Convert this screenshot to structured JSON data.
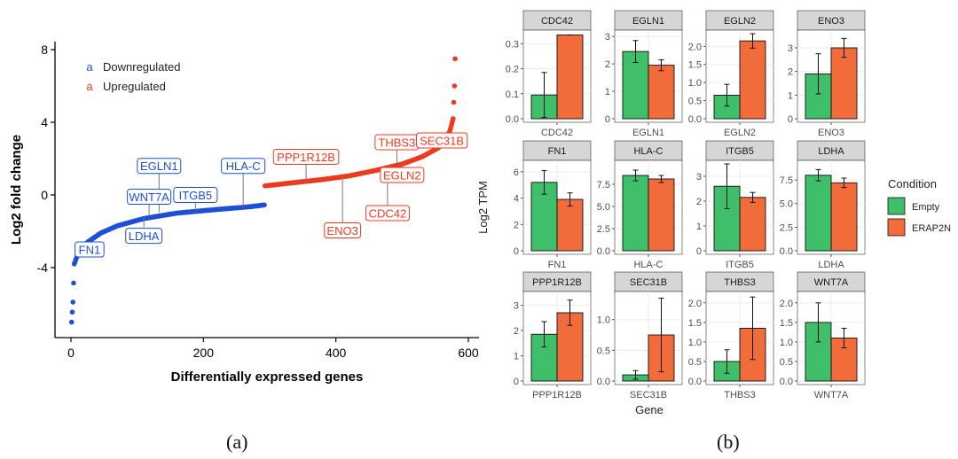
{
  "panel_labels": {
    "a": "(a)",
    "b": "(b)"
  },
  "colors": {
    "down": "#1f4fd6",
    "up": "#ec3b20",
    "empty": "#3fbf6a",
    "erap2n": "#f26b3a",
    "strip": "#d6d6d6",
    "grid": "#ebebeb"
  },
  "chart_data": [
    {
      "type": "scatter",
      "title": "",
      "xlabel": "Differentially expressed genes",
      "ylabel": "Log2 fold change",
      "xlim": [
        0,
        600
      ],
      "ylim": [
        -8,
        8
      ],
      "xticks": [
        "0",
        "200",
        "400",
        "600"
      ],
      "yticks": [
        "-4",
        "0",
        "4",
        "8"
      ],
      "legend": {
        "placement": "top-left",
        "symbol": "a",
        "entries": [
          {
            "label": "Downregulated",
            "color": "#1f4fd6"
          },
          {
            "label": "Upregulated",
            "color": "#ec3b20"
          }
        ]
      },
      "series": [
        {
          "name": "Downregulated",
          "range": [
            1,
            292
          ],
          "curve": [
            [
              1,
              -7.0
            ],
            [
              3,
              -5.9
            ],
            [
              5,
              -3.8
            ],
            [
              9,
              -3.4
            ],
            [
              15,
              -3.0
            ],
            [
              25,
              -2.6
            ],
            [
              45,
              -2.1
            ],
            [
              70,
              -1.7
            ],
            [
              110,
              -1.3
            ],
            [
              160,
              -1.0
            ],
            [
              220,
              -0.8
            ],
            [
              270,
              -0.65
            ],
            [
              292,
              -0.55
            ]
          ]
        },
        {
          "name": "Upregulated",
          "range": [
            293,
            580
          ],
          "curve": [
            [
              293,
              0.5
            ],
            [
              330,
              0.65
            ],
            [
              380,
              0.85
            ],
            [
              420,
              1.05
            ],
            [
              460,
              1.35
            ],
            [
              500,
              1.7
            ],
            [
              530,
              2.1
            ],
            [
              555,
              2.6
            ],
            [
              565,
              3.0
            ],
            [
              572,
              3.5
            ],
            [
              577,
              4.2
            ],
            [
              579,
              6.0
            ],
            [
              580,
              7.5
            ]
          ]
        }
      ],
      "annotations": [
        {
          "label": "EGLN1",
          "group": "down",
          "x": 133,
          "y": -0.95,
          "ly": 1.6
        },
        {
          "label": "WNT7A",
          "group": "down",
          "x": 118,
          "y": -1.1,
          "ly": -0.1
        },
        {
          "label": "ITGB5",
          "group": "down",
          "x": 188,
          "y": -0.85,
          "ly": 0.0
        },
        {
          "label": "HLA-C",
          "group": "down",
          "x": 260,
          "y": -0.7,
          "ly": 1.6
        },
        {
          "label": "LDHA",
          "group": "down",
          "x": 110,
          "y": -1.25,
          "ly": -2.25
        },
        {
          "label": "FN1",
          "group": "down",
          "x": 28,
          "y": -2.6,
          "ly": -3.0
        },
        {
          "label": "PPP1R12B",
          "group": "up",
          "x": 355,
          "y": 0.75,
          "ly": 2.1
        },
        {
          "label": "ENO3",
          "group": "up",
          "x": 410,
          "y": 1.0,
          "ly": -1.95
        },
        {
          "label": "CDC42",
          "group": "up",
          "x": 478,
          "y": 1.55,
          "ly": -1.0
        },
        {
          "label": "THBS3",
          "group": "up",
          "x": 492,
          "y": 1.7,
          "ly": 2.9
        },
        {
          "label": "EGLN2",
          "group": "up",
          "x": 500,
          "y": 1.75,
          "ly": 1.1
        },
        {
          "label": "SEC31B",
          "group": "up",
          "x": 560,
          "y": 2.8,
          "ly": 3.0
        }
      ]
    },
    {
      "type": "bar",
      "layout": "facet-grid",
      "xlabel": "Gene",
      "ylabel": "Log2 TPM",
      "legend": {
        "title": "Condition",
        "placement": "right",
        "entries": [
          "Empty",
          "ERAP2N"
        ]
      },
      "series_names": [
        "Empty",
        "ERAP2N"
      ],
      "facets": [
        {
          "gene": "CDC42",
          "yticks": [
            "0.0",
            "0.1",
            "0.2",
            "0.3"
          ],
          "ymax": 0.34,
          "values": [
            0.095,
            0.335
          ],
          "err": [
            0.09,
            0.0
          ]
        },
        {
          "gene": "EGLN1",
          "yticks": [
            "0",
            "1",
            "2",
            "3"
          ],
          "ymax": 3.1,
          "values": [
            2.45,
            1.95
          ],
          "err": [
            0.4,
            0.2
          ]
        },
        {
          "gene": "EGLN2",
          "yticks": [
            "0.0",
            "0.5",
            "1.0",
            "1.5",
            "2.0"
          ],
          "ymax": 2.35,
          "values": [
            0.65,
            2.15
          ],
          "err": [
            0.3,
            0.2
          ]
        },
        {
          "gene": "ENO3",
          "yticks": [
            "0",
            "1",
            "2",
            "3"
          ],
          "ymax": 3.6,
          "values": [
            1.9,
            3.0
          ],
          "err": [
            0.85,
            0.4
          ]
        },
        {
          "gene": "FN1",
          "yticks": [
            "0",
            "2",
            "4",
            "6"
          ],
          "ymax": 6.6,
          "values": [
            5.2,
            3.9
          ],
          "err": [
            0.9,
            0.5
          ]
        },
        {
          "gene": "HLA-C",
          "yticks": [
            "0.0",
            "2.5",
            "5.0",
            "7.5"
          ],
          "ymax": 9.8,
          "values": [
            8.5,
            8.1
          ],
          "err": [
            0.6,
            0.4
          ]
        },
        {
          "gene": "ITGB5",
          "yticks": [
            "0",
            "1",
            "2",
            "3"
          ],
          "ymax": 3.5,
          "values": [
            2.6,
            2.15
          ],
          "err": [
            0.9,
            0.2
          ]
        },
        {
          "gene": "LDHA",
          "yticks": [
            "0.0",
            "2.5",
            "5.0",
            "7.5"
          ],
          "ymax": 9.2,
          "values": [
            8.0,
            7.2
          ],
          "err": [
            0.6,
            0.5
          ]
        },
        {
          "gene": "PPP1R12B",
          "yticks": [
            "0",
            "1",
            "2",
            "3"
          ],
          "ymax": 3.4,
          "values": [
            1.85,
            2.7
          ],
          "err": [
            0.5,
            0.5
          ]
        },
        {
          "gene": "SEC31B",
          "yticks": [
            "0.0",
            "0.5",
            "1.0"
          ],
          "ymax": 1.4,
          "values": [
            0.1,
            0.75
          ],
          "err": [
            0.07,
            0.6
          ]
        },
        {
          "gene": "THBS3",
          "yticks": [
            "0.0",
            "0.5",
            "1.0",
            "1.5",
            "2.0"
          ],
          "ymax": 2.2,
          "values": [
            0.5,
            1.35
          ],
          "err": [
            0.3,
            0.8
          ]
        },
        {
          "gene": "WNT7A",
          "yticks": [
            "0.0",
            "0.5",
            "1.0",
            "1.5",
            "2.0"
          ],
          "ymax": 2.2,
          "values": [
            1.5,
            1.1
          ],
          "err": [
            0.5,
            0.25
          ]
        }
      ]
    }
  ]
}
